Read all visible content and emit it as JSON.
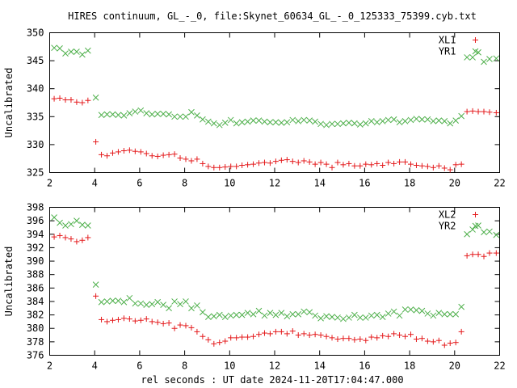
{
  "title": "HIRES continuum, GL_-_0, file:Skynet_60634_GL_-_0_125333_75399.cyb.txt",
  "xlabel": "rel seconds : UT date 2024-11-20T17:04:47.000",
  "colors": {
    "red": "#e41a1c",
    "green": "#4daf4a",
    "frame": "#000000"
  },
  "chart_data": [
    {
      "type": "scatter",
      "ylabel": "Uncalibrated",
      "xlim": [
        2,
        22
      ],
      "ylim": [
        325,
        350
      ],
      "xticks": [
        2,
        4,
        6,
        8,
        10,
        12,
        14,
        16,
        18,
        20,
        22
      ],
      "yticks": [
        325,
        330,
        335,
        340,
        345,
        350
      ],
      "legend_position": "top-right",
      "x": [
        2.2,
        2.45,
        2.7,
        2.95,
        3.2,
        3.45,
        3.7,
        4.05,
        4.3,
        4.55,
        4.8,
        5.05,
        5.3,
        5.55,
        5.8,
        6.05,
        6.3,
        6.55,
        6.8,
        7.05,
        7.3,
        7.55,
        7.8,
        8.05,
        8.3,
        8.55,
        8.8,
        9.05,
        9.3,
        9.55,
        9.8,
        10.05,
        10.3,
        10.55,
        10.8,
        11.05,
        11.3,
        11.55,
        11.8,
        12.05,
        12.3,
        12.55,
        12.8,
        13.05,
        13.3,
        13.55,
        13.8,
        14.05,
        14.3,
        14.55,
        14.8,
        15.05,
        15.3,
        15.55,
        15.8,
        16.05,
        16.3,
        16.55,
        16.8,
        17.05,
        17.3,
        17.55,
        17.8,
        18.05,
        18.3,
        18.55,
        18.8,
        19.05,
        19.3,
        19.55,
        19.8,
        20.05,
        20.3,
        20.55,
        20.8,
        21.05,
        21.3,
        21.55,
        21.85
      ],
      "series": [
        {
          "name": "XL1",
          "marker": "plus",
          "color": "#e41a1c",
          "values": [
            338.2,
            338.3,
            338.0,
            338.0,
            337.6,
            337.5,
            337.9,
            330.5,
            328.2,
            328.0,
            328.5,
            328.7,
            328.9,
            329.0,
            328.8,
            328.7,
            328.4,
            328.0,
            327.9,
            328.1,
            328.2,
            328.3,
            327.6,
            327.4,
            327.1,
            327.4,
            326.6,
            326.1,
            325.9,
            325.9,
            326.0,
            326.1,
            326.1,
            326.3,
            326.4,
            326.5,
            326.7,
            326.8,
            326.7,
            327.0,
            327.2,
            327.3,
            327.0,
            326.8,
            327.1,
            326.9,
            326.5,
            326.8,
            326.5,
            325.9,
            326.8,
            326.4,
            326.6,
            326.2,
            326.2,
            326.5,
            326.4,
            326.6,
            326.3,
            326.8,
            326.6,
            326.9,
            326.9,
            326.5,
            326.3,
            326.2,
            326.1,
            325.9,
            326.2,
            325.8,
            325.5,
            326.4,
            326.5,
            335.9,
            336.0,
            335.9,
            335.9,
            335.8,
            335.7
          ]
        },
        {
          "name": "YR1",
          "marker": "cross",
          "color": "#4daf4a",
          "values": [
            347.3,
            347.2,
            346.3,
            346.6,
            346.6,
            346.1,
            346.8,
            338.4,
            335.3,
            335.4,
            335.4,
            335.3,
            335.2,
            335.6,
            335.9,
            336.1,
            335.6,
            335.4,
            335.5,
            335.5,
            335.4,
            335.0,
            335.0,
            335.0,
            335.8,
            335.2,
            334.5,
            334.1,
            333.8,
            333.5,
            333.9,
            334.4,
            333.8,
            334.0,
            334.1,
            334.3,
            334.3,
            334.1,
            334.0,
            334.0,
            333.9,
            334.0,
            334.4,
            334.2,
            334.4,
            334.3,
            334.1,
            333.7,
            333.5,
            333.7,
            333.7,
            333.8,
            333.9,
            333.8,
            333.6,
            333.8,
            334.2,
            334.0,
            334.2,
            334.4,
            334.5,
            334.0,
            334.2,
            334.4,
            334.6,
            334.5,
            334.5,
            334.2,
            334.3,
            334.2,
            333.8,
            334.3,
            335.1,
            345.6,
            345.6,
            346.5,
            344.8,
            345.3,
            345.4
          ]
        }
      ]
    },
    {
      "type": "scatter",
      "ylabel": "Uncalibrated",
      "xlim": [
        2,
        22
      ],
      "ylim": [
        376,
        398
      ],
      "xticks": [
        2,
        4,
        6,
        8,
        10,
        12,
        14,
        16,
        18,
        20,
        22
      ],
      "yticks": [
        376,
        378,
        380,
        382,
        384,
        386,
        388,
        390,
        392,
        394,
        396,
        398
      ],
      "legend_position": "top-right",
      "x": [
        2.2,
        2.45,
        2.7,
        2.95,
        3.2,
        3.45,
        3.7,
        4.05,
        4.3,
        4.55,
        4.8,
        5.05,
        5.3,
        5.55,
        5.8,
        6.05,
        6.3,
        6.55,
        6.8,
        7.05,
        7.3,
        7.55,
        7.8,
        8.05,
        8.3,
        8.55,
        8.8,
        9.05,
        9.3,
        9.55,
        9.8,
        10.05,
        10.3,
        10.55,
        10.8,
        11.05,
        11.3,
        11.55,
        11.8,
        12.05,
        12.3,
        12.55,
        12.8,
        13.05,
        13.3,
        13.55,
        13.8,
        14.05,
        14.3,
        14.55,
        14.8,
        15.05,
        15.3,
        15.55,
        15.8,
        16.05,
        16.3,
        16.55,
        16.8,
        17.05,
        17.3,
        17.55,
        17.8,
        18.05,
        18.3,
        18.55,
        18.8,
        19.05,
        19.3,
        19.55,
        19.8,
        20.05,
        20.3,
        20.55,
        20.8,
        21.05,
        21.3,
        21.55,
        21.85
      ],
      "series": [
        {
          "name": "XL2",
          "marker": "plus",
          "color": "#e41a1c",
          "values": [
            393.6,
            393.8,
            393.5,
            393.3,
            392.9,
            393.1,
            393.5,
            384.8,
            381.3,
            381.0,
            381.2,
            381.3,
            381.5,
            381.4,
            381.1,
            381.2,
            381.4,
            381.0,
            380.9,
            380.7,
            380.8,
            380.0,
            380.5,
            380.4,
            380.1,
            379.5,
            378.8,
            378.3,
            377.7,
            377.9,
            378.1,
            378.6,
            378.6,
            378.7,
            378.7,
            378.8,
            379.1,
            379.3,
            379.2,
            379.5,
            379.5,
            379.2,
            379.6,
            379.0,
            379.2,
            379.0,
            379.1,
            379.0,
            378.8,
            378.6,
            378.4,
            378.5,
            378.5,
            378.3,
            378.4,
            378.2,
            378.7,
            378.6,
            378.9,
            378.8,
            379.2,
            379.0,
            378.8,
            379.1,
            378.4,
            378.5,
            378.1,
            378.0,
            378.2,
            377.5,
            377.8,
            377.9,
            379.5,
            390.8,
            391.0,
            391.0,
            390.7,
            391.2,
            391.2
          ]
        },
        {
          "name": "YR2",
          "marker": "cross",
          "color": "#4daf4a",
          "values": [
            396.5,
            395.7,
            395.3,
            395.5,
            396.0,
            395.4,
            395.3,
            386.5,
            383.9,
            384.0,
            384.1,
            384.1,
            383.9,
            384.5,
            383.7,
            383.7,
            383.5,
            383.6,
            383.9,
            383.5,
            383.0,
            384.0,
            383.6,
            384.0,
            383.0,
            383.4,
            382.4,
            381.7,
            381.8,
            382.0,
            381.7,
            381.9,
            382.0,
            382.0,
            382.3,
            382.1,
            382.6,
            381.9,
            382.3,
            382.0,
            382.3,
            381.8,
            382.1,
            382.1,
            382.5,
            382.4,
            381.9,
            381.5,
            381.8,
            381.7,
            381.6,
            381.4,
            381.6,
            382.0,
            381.6,
            381.6,
            381.9,
            382.0,
            381.7,
            382.2,
            382.5,
            381.9,
            382.8,
            382.8,
            382.7,
            382.6,
            382.2,
            381.9,
            382.3,
            382.1,
            382.1,
            382.1,
            383.2,
            394.0,
            394.7,
            395.3,
            394.3,
            394.4,
            393.9
          ]
        }
      ]
    }
  ]
}
